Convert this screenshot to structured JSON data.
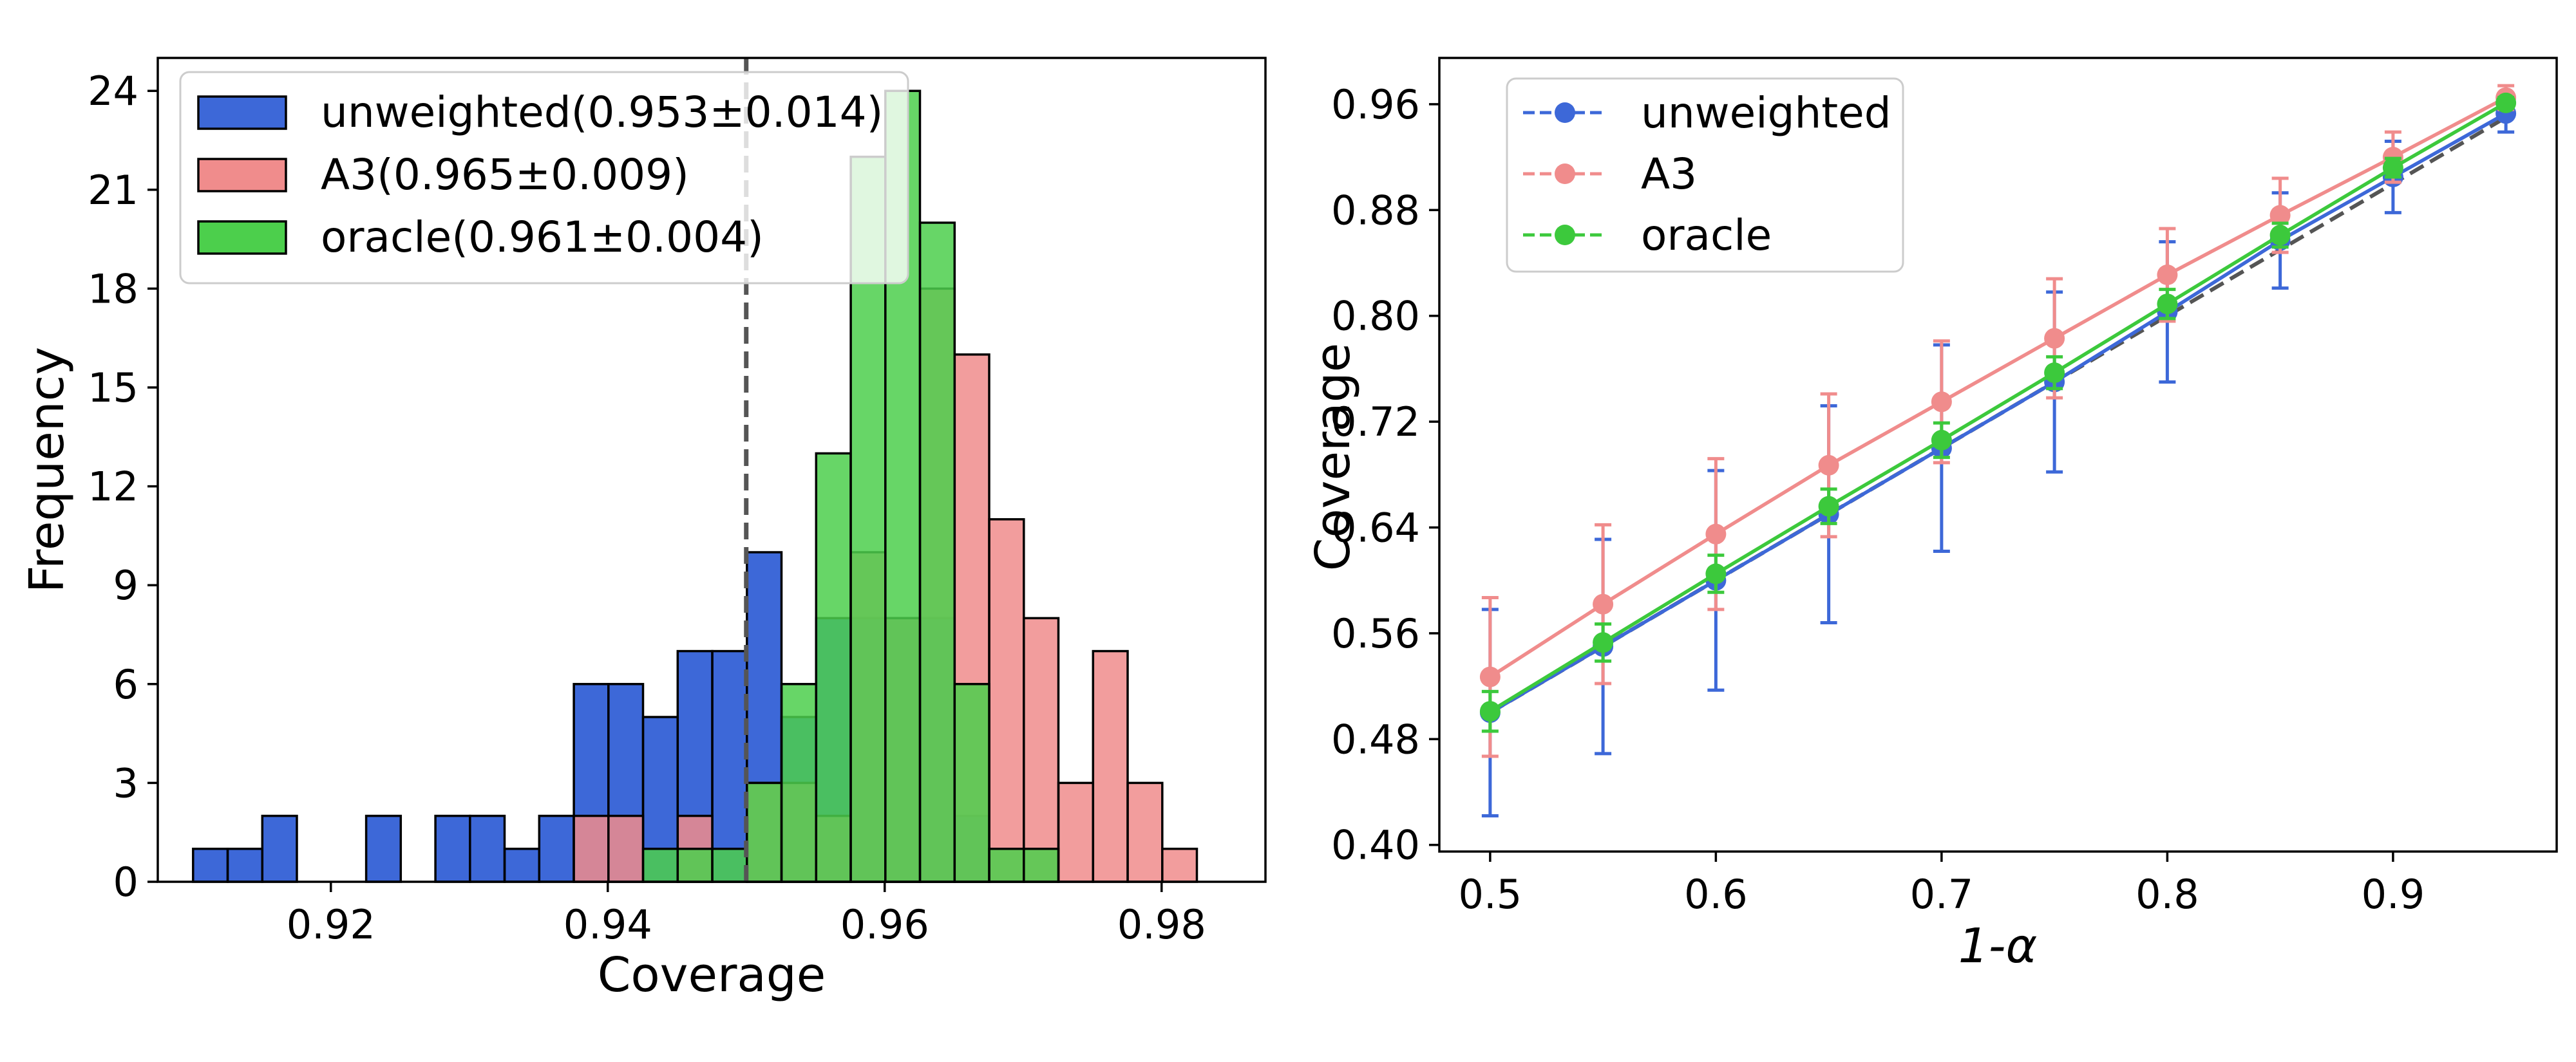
{
  "chart_data": [
    {
      "type": "histogram",
      "xlabel": "Coverage",
      "ylabel": "Frequency",
      "xlim": [
        0.9075,
        0.9875
      ],
      "ylim": [
        0,
        25
      ],
      "xticks": [
        0.92,
        0.94,
        0.96,
        0.98
      ],
      "xtick_labels": [
        "0.92",
        "0.94",
        "0.96",
        "0.98"
      ],
      "yticks": [
        0,
        3,
        6,
        9,
        12,
        15,
        18,
        21,
        24
      ],
      "ytick_labels": [
        "0",
        "3",
        "6",
        "9",
        "12",
        "15",
        "18",
        "21",
        "24"
      ],
      "bin_width": 0.0025,
      "reference_line": 0.95,
      "legend_position": "top-left",
      "series": [
        {
          "name": "unweighted",
          "legend_label": "unweighted(0.953±0.014)",
          "color": "#3d68d8",
          "bins": [
            [
              0.9113,
              1
            ],
            [
              0.9138,
              1
            ],
            [
              0.9163,
              2
            ],
            [
              0.9238,
              2
            ],
            [
              0.9288,
              2
            ],
            [
              0.9313,
              2
            ],
            [
              0.9338,
              1
            ],
            [
              0.9363,
              2
            ],
            [
              0.9388,
              6
            ],
            [
              0.9413,
              6
            ],
            [
              0.9438,
              5
            ],
            [
              0.9463,
              7
            ],
            [
              0.9488,
              7
            ],
            [
              0.9513,
              10
            ],
            [
              0.9538,
              5
            ],
            [
              0.9563,
              8
            ],
            [
              0.9588,
              8
            ],
            [
              0.9613,
              8
            ],
            [
              0.9638,
              8
            ],
            [
              0.9663,
              2
            ]
          ]
        },
        {
          "name": "A3",
          "legend_label": "A3(0.965±0.009)",
          "color": "#f08c8c",
          "bins": [
            [
              0.9388,
              2
            ],
            [
              0.9413,
              2
            ],
            [
              0.9463,
              2
            ],
            [
              0.9513,
              3
            ],
            [
              0.9538,
              3
            ],
            [
              0.9563,
              2
            ],
            [
              0.9588,
              10
            ],
            [
              0.9613,
              8
            ],
            [
              0.9638,
              18
            ],
            [
              0.9663,
              16
            ],
            [
              0.9688,
              11
            ],
            [
              0.9713,
              8
            ],
            [
              0.9738,
              3
            ],
            [
              0.9763,
              7
            ],
            [
              0.9788,
              3
            ],
            [
              0.9813,
              1
            ]
          ]
        },
        {
          "name": "oracle",
          "legend_label": "oracle(0.961±0.004)",
          "color": "#4ccf4c",
          "bins": [
            [
              0.9438,
              1
            ],
            [
              0.9463,
              1
            ],
            [
              0.9488,
              1
            ],
            [
              0.9513,
              3
            ],
            [
              0.9538,
              6
            ],
            [
              0.9563,
              13
            ],
            [
              0.9588,
              22
            ],
            [
              0.9613,
              24
            ],
            [
              0.9638,
              20
            ],
            [
              0.9663,
              6
            ],
            [
              0.9688,
              1
            ],
            [
              0.9713,
              1
            ]
          ]
        }
      ]
    },
    {
      "type": "line",
      "xlabel": "1-α",
      "ylabel": "Coverage",
      "xlim": [
        0.4775,
        0.9725
      ],
      "ylim": [
        0.395,
        0.995
      ],
      "xticks": [
        0.5,
        0.6,
        0.7,
        0.8,
        0.9
      ],
      "xtick_labels": [
        "0.5",
        "0.6",
        "0.7",
        "0.8",
        "0.9"
      ],
      "yticks": [
        0.4,
        0.48,
        0.56,
        0.64,
        0.72,
        0.8,
        0.88,
        0.96
      ],
      "ytick_labels": [
        "0.40",
        "0.48",
        "0.56",
        "0.64",
        "0.72",
        "0.80",
        "0.88",
        "0.96"
      ],
      "x": [
        0.5,
        0.55,
        0.6,
        0.65,
        0.7,
        0.75,
        0.8,
        0.85,
        0.9,
        0.95
      ],
      "reference_line": "y = x",
      "legend_position": "top-left",
      "series": [
        {
          "name": "unweighted",
          "legend_label": "unweighted",
          "color": "#3d68d8",
          "values": [
            0.5,
            0.55,
            0.6,
            0.65,
            0.7,
            0.75,
            0.803,
            0.857,
            0.905,
            0.953
          ],
          "error": [
            0.078,
            0.081,
            0.083,
            0.082,
            0.078,
            0.068,
            0.053,
            0.036,
            0.027,
            0.014
          ]
        },
        {
          "name": "A3",
          "legend_label": "A3",
          "color": "#f08c8c",
          "values": [
            0.527,
            0.582,
            0.635,
            0.687,
            0.735,
            0.783,
            0.831,
            0.876,
            0.92,
            0.965
          ],
          "error": [
            0.06,
            0.06,
            0.057,
            0.054,
            0.046,
            0.045,
            0.035,
            0.028,
            0.019,
            0.009
          ]
        },
        {
          "name": "oracle",
          "legend_label": "oracle",
          "color": "#3cc93c",
          "values": [
            0.501,
            0.553,
            0.605,
            0.656,
            0.706,
            0.757,
            0.809,
            0.861,
            0.912,
            0.961
          ],
          "error": [
            0.015,
            0.014,
            0.014,
            0.013,
            0.013,
            0.012,
            0.011,
            0.009,
            0.007,
            0.004
          ]
        }
      ]
    }
  ]
}
